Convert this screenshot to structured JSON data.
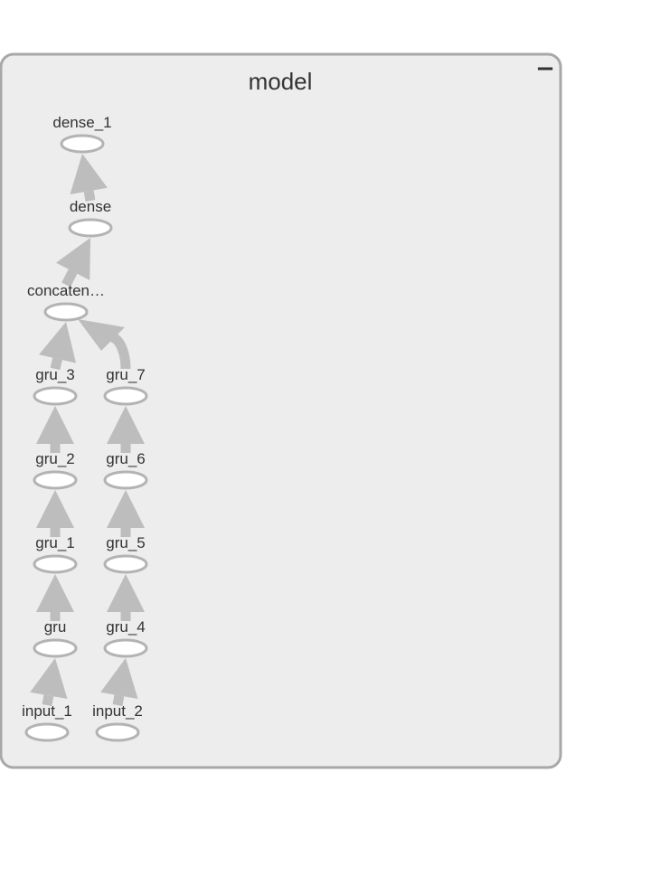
{
  "graph": {
    "title": "model",
    "collapse_symbol": "−",
    "colors": {
      "container_bg": "#ededed",
      "container_border": "#a8a8a8",
      "edge": "#bdbdbd",
      "node_border": "#b3b3b3",
      "text": "#333333"
    },
    "nodes": [
      {
        "id": "dense_1",
        "label": "dense_1"
      },
      {
        "id": "dense",
        "label": "dense"
      },
      {
        "id": "concatenate",
        "label": "concaten…"
      },
      {
        "id": "gru_3",
        "label": "gru_3"
      },
      {
        "id": "gru_7",
        "label": "gru_7"
      },
      {
        "id": "gru_2",
        "label": "gru_2"
      },
      {
        "id": "gru_6",
        "label": "gru_6"
      },
      {
        "id": "gru_1",
        "label": "gru_1"
      },
      {
        "id": "gru_5",
        "label": "gru_5"
      },
      {
        "id": "gru",
        "label": "gru"
      },
      {
        "id": "gru_4",
        "label": "gru_4"
      },
      {
        "id": "input_1",
        "label": "input_1"
      },
      {
        "id": "input_2",
        "label": "input_2"
      }
    ],
    "edges": [
      {
        "from": "input_1",
        "to": "gru"
      },
      {
        "from": "gru",
        "to": "gru_1"
      },
      {
        "from": "gru_1",
        "to": "gru_2"
      },
      {
        "from": "gru_2",
        "to": "gru_3"
      },
      {
        "from": "gru_3",
        "to": "concatenate"
      },
      {
        "from": "input_2",
        "to": "gru_4"
      },
      {
        "from": "gru_4",
        "to": "gru_5"
      },
      {
        "from": "gru_5",
        "to": "gru_6"
      },
      {
        "from": "gru_6",
        "to": "gru_7"
      },
      {
        "from": "gru_7",
        "to": "concatenate"
      },
      {
        "from": "concatenate",
        "to": "dense"
      },
      {
        "from": "dense",
        "to": "dense_1"
      }
    ]
  }
}
